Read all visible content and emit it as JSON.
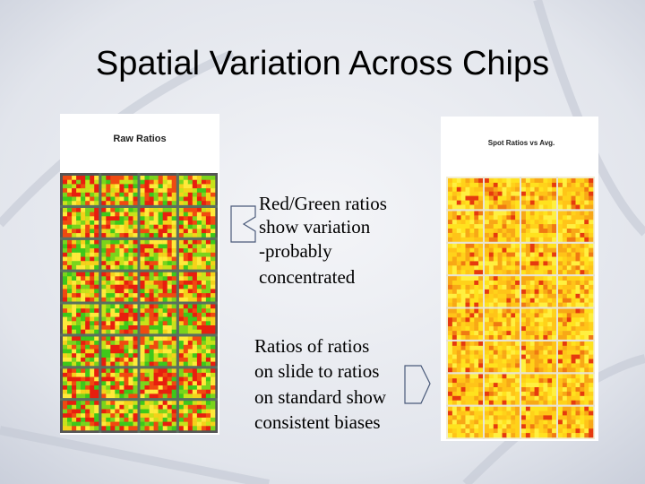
{
  "title": "Spatial Variation Across Chips",
  "left_image": {
    "title": "Raw Ratios"
  },
  "right_image": {
    "title": "Spot Ratios vs Avg."
  },
  "note_1": {
    "lines": [
      "Red/Green ratios",
      "show variation",
      "-probably",
      "concentrated"
    ]
  },
  "note_2": {
    "lines": [
      "Ratios of ratios",
      "on slide to ratios",
      "on standard show",
      "consistent biases"
    ]
  }
}
